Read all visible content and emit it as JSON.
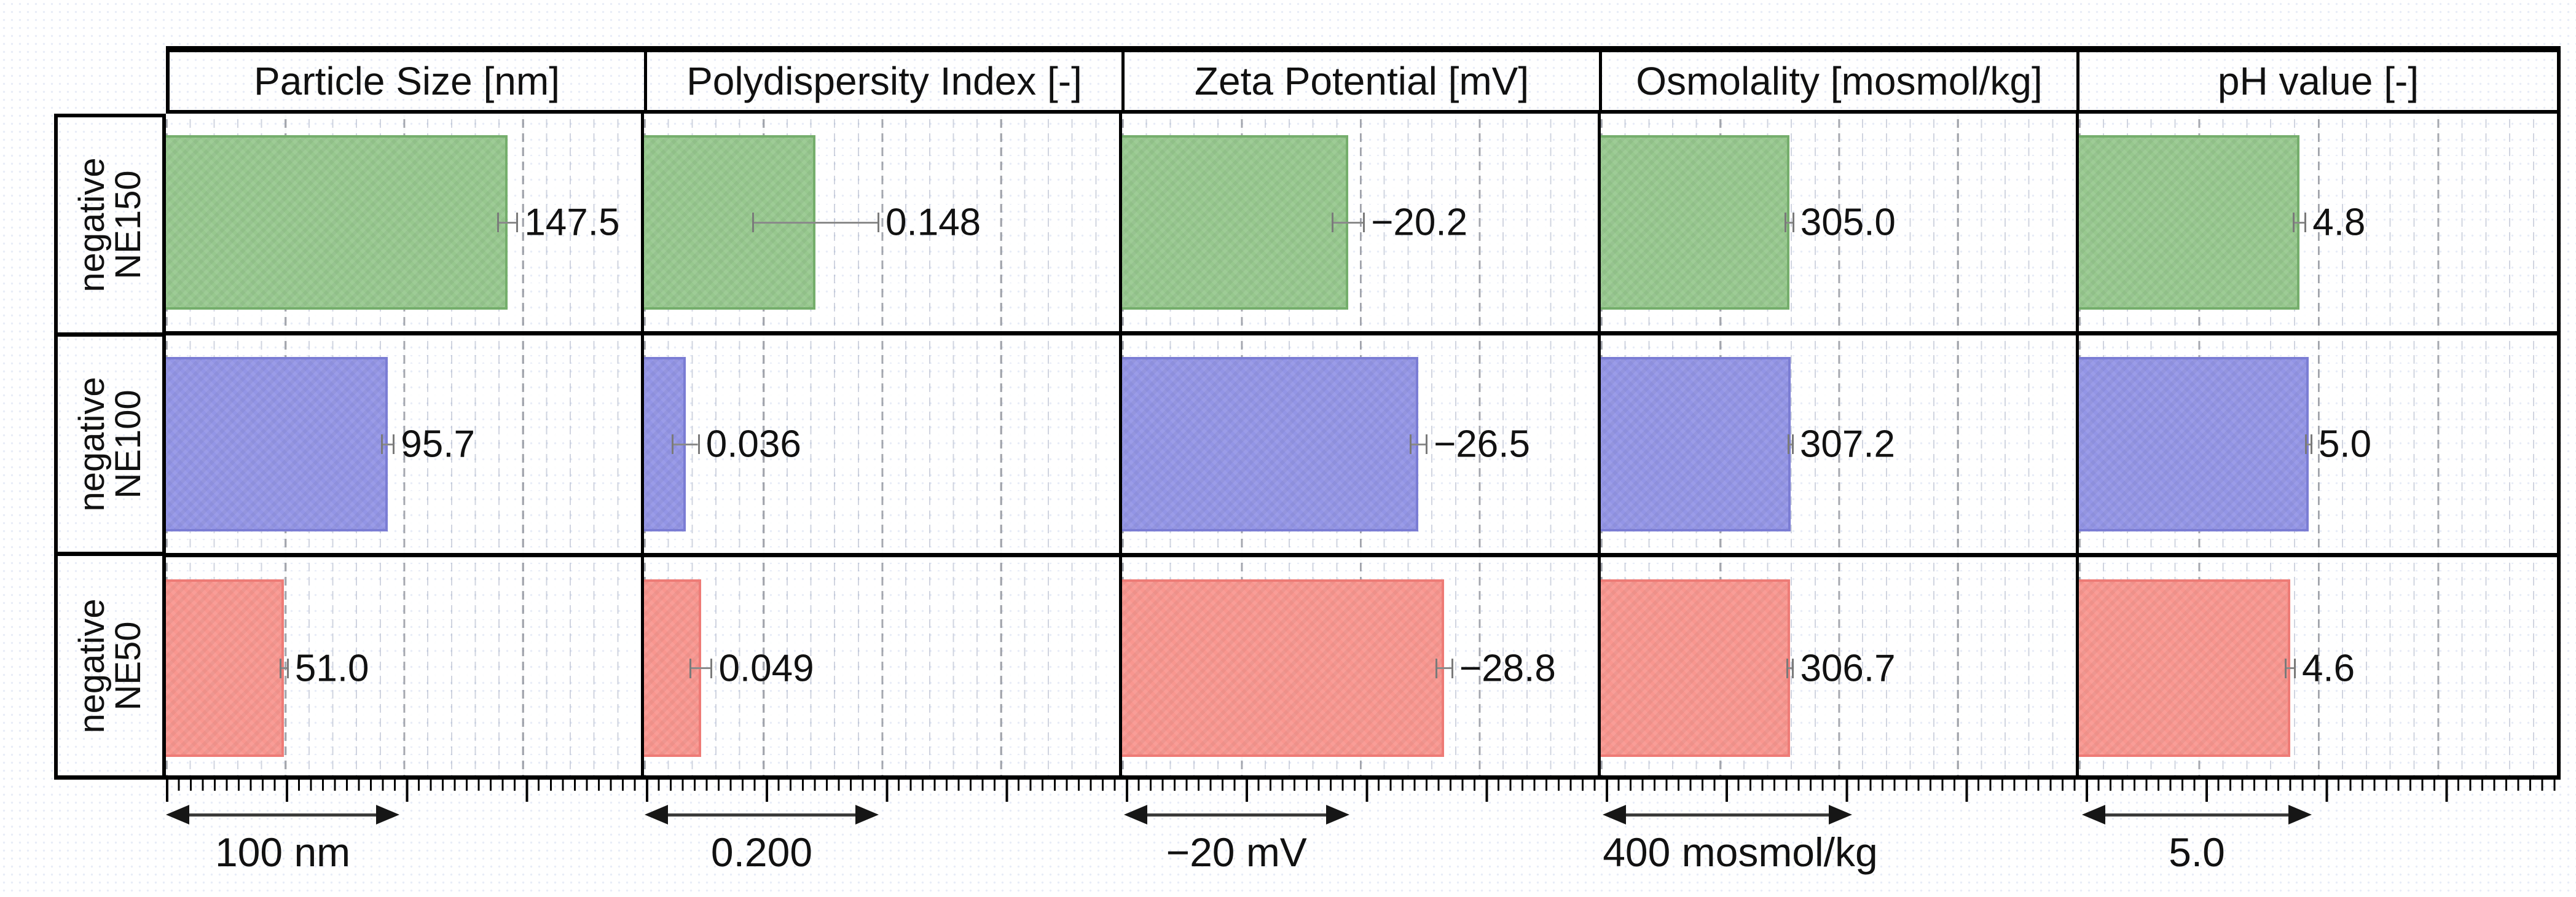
{
  "chart_data": {
    "type": "bar",
    "orientation": "horizontal",
    "title": "",
    "grid": "dashed vertical gridlines, minor dotted every 5% of panel, major dashed every 25%",
    "legend_position": "none",
    "columns": [
      {
        "title": "Particle Size [nm]",
        "xmin": 0,
        "xmax": 205,
        "scale_value": 100,
        "scale_label": "100 nm"
      },
      {
        "title": "Polydispersity Index [-]",
        "xmin": 0,
        "xmax": 0.41,
        "scale_value": 0.2,
        "scale_label": "0.200"
      },
      {
        "title": "Zeta Potential [mV]",
        "xmin": 0,
        "xmax": 42.5,
        "scale_value": 20,
        "scale_label": "−20 mV"
      },
      {
        "title": "Osmolality [mosmol/kg]",
        "xmin": 0,
        "xmax": 768,
        "scale_value": 400,
        "scale_label": "400 mosmol/kg"
      },
      {
        "title": "pH value [-]",
        "xmin": 0,
        "xmax": 10.4,
        "scale_value": 5,
        "scale_label": "5.0"
      }
    ],
    "rows": [
      {
        "label_lines": "negative\nNE150",
        "bar_color": "#97c88e",
        "bar_edge": "#75ae6c",
        "values": [
          147.5,
          0.148,
          -20.2,
          305.0,
          4.8
        ],
        "value_labels": [
          "147.5",
          "0.148",
          "−20.2",
          "305.0",
          "4.8"
        ],
        "errors": [
          4.5,
          0.055,
          1.5,
          8,
          0.15
        ]
      },
      {
        "label_lines": "negative\nNE100",
        "bar_color": "#9395e6",
        "bar_edge": "#7b7dd4",
        "values": [
          95.7,
          0.036,
          -26.5,
          307.2,
          5.0
        ],
        "value_labels": [
          "95.7",
          "0.036",
          "−26.5",
          "307.2",
          "5.0"
        ],
        "errors": [
          3.0,
          0.012,
          0.8,
          5,
          0.08
        ]
      },
      {
        "label_lines": "negative\nNE50",
        "bar_color": "#f9968f",
        "bar_edge": "#ee7b76",
        "values": [
          51.0,
          0.049,
          -28.8,
          306.7,
          4.6
        ],
        "value_labels": [
          "51.0",
          "0.049",
          "−28.8",
          "306.7",
          "4.6"
        ],
        "errors": [
          2.0,
          0.01,
          0.8,
          6,
          0.12
        ]
      }
    ],
    "error_bar_color": "#7a7a7a",
    "axis_color": "#000000"
  }
}
